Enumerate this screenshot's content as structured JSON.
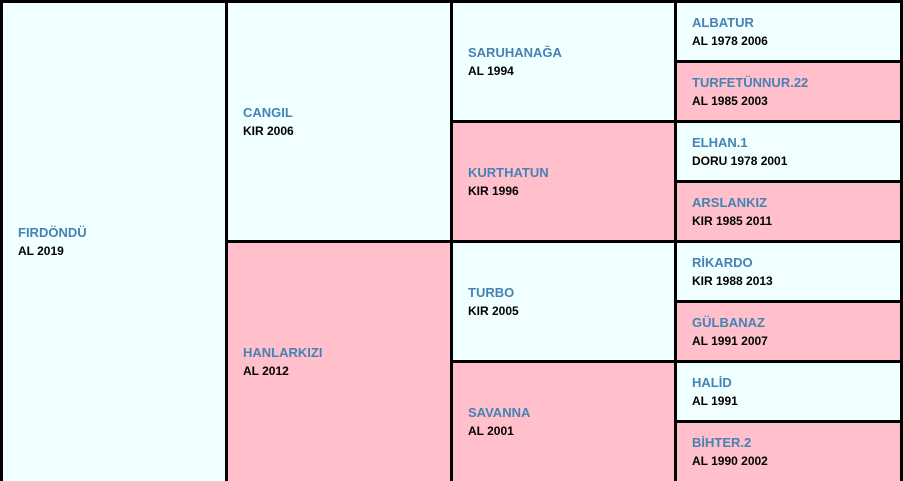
{
  "colors": {
    "male_bg": "#f0ffff",
    "female_bg": "#ffc0cb",
    "name_text": "#4682b4",
    "info_text": "#000000",
    "border": "#000000"
  },
  "pedigree": {
    "subject": {
      "name": "FIRDÖNDÜ",
      "info": "AL 2019"
    },
    "sire": {
      "name": "CANGIL",
      "info": "KIR 2006"
    },
    "dam": {
      "name": "HANLARKIZI",
      "info": "AL 2012"
    },
    "sire_sire": {
      "name": "SARUHANAĞA",
      "info": "AL 1994"
    },
    "sire_dam": {
      "name": "KURTHATUN",
      "info": "KIR 1996"
    },
    "dam_sire": {
      "name": "TURBO",
      "info": "KIR 2005"
    },
    "dam_dam": {
      "name": "SAVANNA",
      "info": "AL 2001"
    },
    "g3": [
      {
        "name": "ALBATUR",
        "info": "AL 1978 2006"
      },
      {
        "name": "TURFETÜNNUR.22",
        "info": "AL 1985 2003"
      },
      {
        "name": "ELHAN.1",
        "info": "DORU 1978 2001"
      },
      {
        "name": "ARSLANKIZ",
        "info": "KIR 1985 2011"
      },
      {
        "name": "RİKARDO",
        "info": "KIR 1988 2013"
      },
      {
        "name": "GÜLBANAZ",
        "info": "AL 1991 2007"
      },
      {
        "name": "HALİD",
        "info": "AL 1991"
      },
      {
        "name": "BİHTER.2",
        "info": "AL 1990 2002"
      }
    ]
  }
}
